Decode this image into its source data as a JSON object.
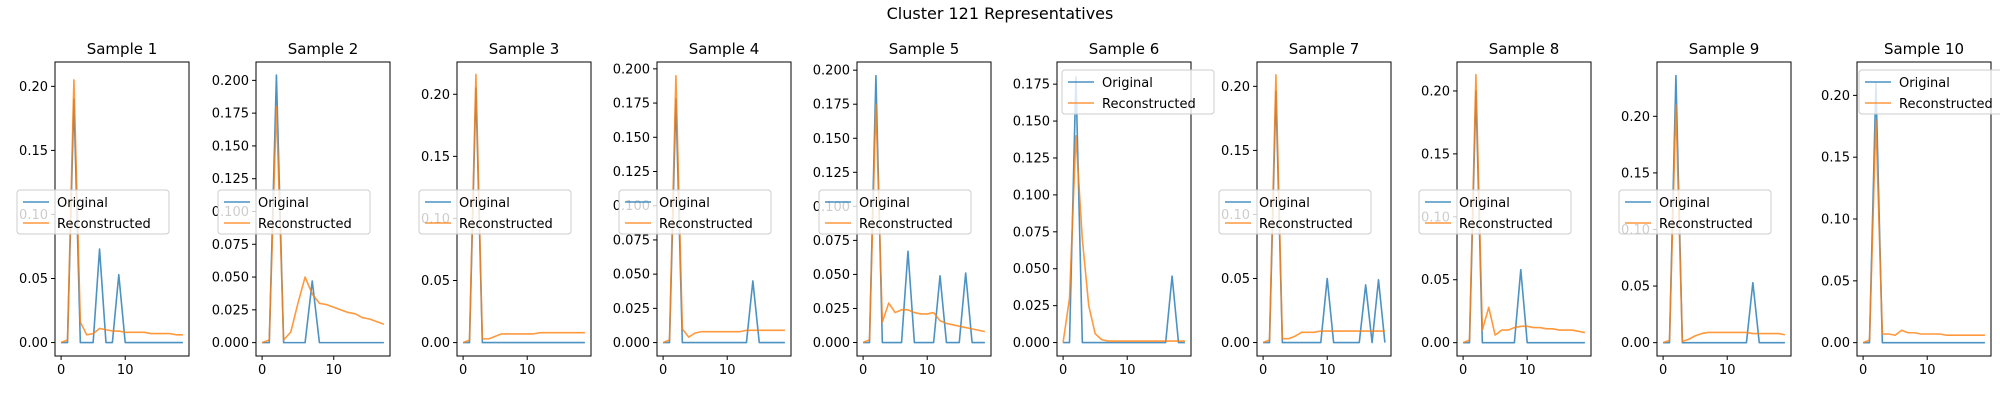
{
  "figure": {
    "title": "Cluster 121 Representatives"
  },
  "colors": {
    "original": "#1f77b4",
    "reconstructed": "#ff7f0e",
    "axes": "#000000"
  },
  "chart_data": [
    {
      "type": "line",
      "title": "Sample 1",
      "legend_position": "center-left",
      "x": [
        0,
        1,
        2,
        3,
        4,
        5,
        6,
        7,
        8,
        9,
        10,
        11,
        12,
        13,
        14,
        15,
        16,
        17,
        18,
        19
      ],
      "xticks": [
        0,
        10
      ],
      "ylim": [
        -0.0105,
        0.219
      ],
      "yticks": [
        0.0,
        0.05,
        0.1,
        0.15,
        0.2
      ],
      "ytick_labels": [
        "0.00",
        "0.05",
        "0.10",
        "0.15",
        "0.20"
      ],
      "series": [
        {
          "name": "Original",
          "values": [
            0,
            0,
            0.19,
            0,
            0,
            0,
            0.073,
            0,
            0,
            0.053,
            0,
            0,
            0,
            0,
            0,
            0,
            0,
            0,
            0,
            0
          ]
        },
        {
          "name": "Reconstructed",
          "values": [
            0,
            0.002,
            0.205,
            0.016,
            0.006,
            0.007,
            0.011,
            0.01,
            0.009,
            0.009,
            0.008,
            0.008,
            0.008,
            0.008,
            0.007,
            0.007,
            0.007,
            0.007,
            0.006,
            0.006
          ]
        }
      ]
    },
    {
      "type": "line",
      "title": "Sample 2",
      "legend_position": "center-left",
      "x": [
        0,
        1,
        2,
        3,
        4,
        5,
        6,
        7,
        8,
        9,
        10,
        11,
        12,
        13,
        14,
        15,
        16,
        17
      ],
      "xticks": [
        0,
        10
      ],
      "ylim": [
        -0.0102,
        0.214
      ],
      "yticks": [
        0.0,
        0.025,
        0.05,
        0.075,
        0.1,
        0.125,
        0.15,
        0.175,
        0.2
      ],
      "ytick_labels": [
        "0.000",
        "0.025",
        "0.050",
        "0.075",
        "0.100",
        "0.125",
        "0.150",
        "0.175",
        "0.200"
      ],
      "series": [
        {
          "name": "Original",
          "values": [
            0,
            0,
            0.204,
            0,
            0,
            0,
            0,
            0.047,
            0,
            0,
            0,
            0,
            0,
            0,
            0,
            0,
            0,
            0
          ]
        },
        {
          "name": "Reconstructed",
          "values": [
            0,
            0.002,
            0.18,
            0.002,
            0.008,
            0.03,
            0.05,
            0.037,
            0.03,
            0.029,
            0.027,
            0.025,
            0.023,
            0.022,
            0.019,
            0.018,
            0.016,
            0.014
          ]
        }
      ]
    },
    {
      "type": "line",
      "title": "Sample 3",
      "legend_position": "center-left",
      "x": [
        0,
        1,
        2,
        3,
        4,
        5,
        6,
        7,
        8,
        9,
        10,
        11,
        12,
        13,
        14,
        15,
        16,
        17,
        18,
        19
      ],
      "xticks": [
        0,
        10
      ],
      "ylim": [
        -0.0108,
        0.226
      ],
      "yticks": [
        0.0,
        0.05,
        0.1,
        0.15,
        0.2
      ],
      "ytick_labels": [
        "0.00",
        "0.05",
        "0.10",
        "0.15",
        "0.20"
      ],
      "series": [
        {
          "name": "Original",
          "values": [
            0,
            0,
            0.205,
            0,
            0,
            0,
            0,
            0,
            0,
            0,
            0,
            0,
            0,
            0,
            0,
            0,
            0,
            0,
            0,
            0
          ]
        },
        {
          "name": "Reconstructed",
          "values": [
            0,
            0.002,
            0.216,
            0.003,
            0.003,
            0.005,
            0.007,
            0.007,
            0.007,
            0.007,
            0.007,
            0.007,
            0.008,
            0.008,
            0.008,
            0.008,
            0.008,
            0.008,
            0.008,
            0.008
          ]
        }
      ]
    },
    {
      "type": "line",
      "title": "Sample 4",
      "legend_position": "center-left",
      "x": [
        0,
        1,
        2,
        3,
        4,
        5,
        6,
        7,
        8,
        9,
        10,
        11,
        12,
        13,
        14,
        15,
        16,
        17,
        18,
        19
      ],
      "xticks": [
        0,
        10
      ],
      "ylim": [
        -0.0098,
        0.205
      ],
      "yticks": [
        0.0,
        0.025,
        0.05,
        0.075,
        0.1,
        0.125,
        0.15,
        0.175,
        0.2
      ],
      "ytick_labels": [
        "0.000",
        "0.025",
        "0.050",
        "0.075",
        "0.100",
        "0.125",
        "0.150",
        "0.175",
        "0.200"
      ],
      "series": [
        {
          "name": "Original",
          "values": [
            0,
            0,
            0.178,
            0,
            0,
            0,
            0,
            0,
            0,
            0,
            0,
            0,
            0,
            0,
            0.045,
            0,
            0,
            0,
            0,
            0
          ]
        },
        {
          "name": "Reconstructed",
          "values": [
            0,
            0.002,
            0.195,
            0.01,
            0.004,
            0.007,
            0.008,
            0.008,
            0.008,
            0.008,
            0.008,
            0.008,
            0.008,
            0.009,
            0.009,
            0.009,
            0.009,
            0.009,
            0.009,
            0.009
          ]
        }
      ]
    },
    {
      "type": "line",
      "title": "Sample 5",
      "legend_position": "center-left",
      "x": [
        0,
        1,
        2,
        3,
        4,
        5,
        6,
        7,
        8,
        9,
        10,
        11,
        12,
        13,
        14,
        15,
        16,
        17,
        18,
        19
      ],
      "xticks": [
        0,
        10
      ],
      "ylim": [
        -0.0099,
        0.206
      ],
      "yticks": [
        0.0,
        0.025,
        0.05,
        0.075,
        0.1,
        0.125,
        0.15,
        0.175,
        0.2
      ],
      "ytick_labels": [
        "0.000",
        "0.025",
        "0.050",
        "0.075",
        "0.100",
        "0.125",
        "0.150",
        "0.175",
        "0.200"
      ],
      "series": [
        {
          "name": "Original",
          "values": [
            0,
            0,
            0.196,
            0,
            0,
            0,
            0,
            0.067,
            0,
            0,
            0,
            0,
            0.049,
            0,
            0,
            0,
            0.051,
            0,
            0,
            0
          ]
        },
        {
          "name": "Reconstructed",
          "values": [
            0,
            0.002,
            0.175,
            0.015,
            0.029,
            0.022,
            0.024,
            0.024,
            0.022,
            0.021,
            0.021,
            0.022,
            0.016,
            0.014,
            0.013,
            0.012,
            0.011,
            0.01,
            0.009,
            0.008
          ]
        }
      ]
    },
    {
      "type": "line",
      "title": "Sample 6",
      "legend_position": "upper-center",
      "x": [
        0,
        1,
        2,
        3,
        4,
        5,
        6,
        7,
        8,
        9,
        10,
        11,
        12,
        13,
        14,
        15,
        16,
        17,
        18,
        19
      ],
      "xticks": [
        0,
        10
      ],
      "ylim": [
        -0.0091,
        0.19
      ],
      "yticks": [
        0.0,
        0.025,
        0.05,
        0.075,
        0.1,
        0.125,
        0.15,
        0.175
      ],
      "ytick_labels": [
        "0.000",
        "0.025",
        "0.050",
        "0.075",
        "0.100",
        "0.125",
        "0.150",
        "0.175"
      ],
      "series": [
        {
          "name": "Original",
          "values": [
            0,
            0,
            0.18,
            0,
            0,
            0,
            0,
            0,
            0,
            0,
            0,
            0,
            0,
            0,
            0,
            0,
            0,
            0.045,
            0,
            0
          ]
        },
        {
          "name": "Reconstructed",
          "values": [
            0,
            0.03,
            0.14,
            0.07,
            0.025,
            0.006,
            0.002,
            0.001,
            0.001,
            0.001,
            0.001,
            0.001,
            0.001,
            0.001,
            0.001,
            0.001,
            0.001,
            0.001,
            0.001,
            0.001
          ]
        }
      ]
    },
    {
      "type": "line",
      "title": "Sample 7",
      "legend_position": "center-left",
      "x": [
        0,
        1,
        2,
        3,
        4,
        5,
        6,
        7,
        8,
        9,
        10,
        11,
        12,
        13,
        14,
        15,
        16,
        17,
        18,
        19
      ],
      "xticks": [
        0,
        10
      ],
      "ylim": [
        -0.0105,
        0.219
      ],
      "yticks": [
        0.0,
        0.05,
        0.1,
        0.15,
        0.2
      ],
      "ytick_labels": [
        "0.00",
        "0.05",
        "0.10",
        "0.15",
        "0.20"
      ],
      "series": [
        {
          "name": "Original",
          "values": [
            0,
            0,
            0.196,
            0,
            0,
            0,
            0,
            0,
            0,
            0,
            0.05,
            0,
            0,
            0,
            0,
            0,
            0.045,
            0,
            0.049,
            0
          ]
        },
        {
          "name": "Reconstructed",
          "values": [
            0,
            0.002,
            0.209,
            0.003,
            0.003,
            0.005,
            0.008,
            0.008,
            0.008,
            0.009,
            0.009,
            0.009,
            0.009,
            0.009,
            0.009,
            0.009,
            0.009,
            0.009,
            0.009,
            0.009
          ]
        }
      ]
    },
    {
      "type": "line",
      "title": "Sample 8",
      "legend_position": "center-left",
      "x": [
        0,
        1,
        2,
        3,
        4,
        5,
        6,
        7,
        8,
        9,
        10,
        11,
        12,
        13,
        14,
        15,
        16,
        17,
        18,
        19
      ],
      "xticks": [
        0,
        10
      ],
      "ylim": [
        -0.0106,
        0.223
      ],
      "yticks": [
        0.0,
        0.05,
        0.1,
        0.15,
        0.2
      ],
      "ytick_labels": [
        "0.00",
        "0.05",
        "0.10",
        "0.15",
        "0.20"
      ],
      "series": [
        {
          "name": "Original",
          "values": [
            0,
            0,
            0.2,
            0,
            0,
            0,
            0,
            0,
            0,
            0.058,
            0,
            0,
            0,
            0,
            0,
            0,
            0,
            0,
            0,
            0
          ]
        },
        {
          "name": "Reconstructed",
          "values": [
            0,
            0.002,
            0.213,
            0.01,
            0.028,
            0.006,
            0.01,
            0.01,
            0.012,
            0.013,
            0.013,
            0.012,
            0.012,
            0.011,
            0.011,
            0.01,
            0.01,
            0.01,
            0.009,
            0.008
          ]
        }
      ]
    },
    {
      "type": "line",
      "title": "Sample 9",
      "legend_position": "center-left",
      "x": [
        0,
        1,
        2,
        3,
        4,
        5,
        6,
        7,
        8,
        9,
        10,
        11,
        12,
        13,
        14,
        15,
        16,
        17,
        18,
        19
      ],
      "xticks": [
        0,
        10
      ],
      "ylim": [
        -0.0118,
        0.248
      ],
      "yticks": [
        0.0,
        0.05,
        0.1,
        0.15,
        0.2
      ],
      "ytick_labels": [
        "0.00",
        "0.05",
        "0.10",
        "0.15",
        "0.20"
      ],
      "series": [
        {
          "name": "Original",
          "values": [
            0,
            0,
            0.236,
            0,
            0,
            0,
            0,
            0,
            0,
            0,
            0,
            0,
            0,
            0,
            0.053,
            0,
            0,
            0,
            0,
            0
          ]
        },
        {
          "name": "Reconstructed",
          "values": [
            0,
            0.002,
            0.21,
            0.001,
            0.003,
            0.006,
            0.008,
            0.009,
            0.009,
            0.009,
            0.009,
            0.009,
            0.009,
            0.009,
            0.008,
            0.008,
            0.008,
            0.008,
            0.008,
            0.007
          ]
        }
      ]
    },
    {
      "type": "line",
      "title": "Sample 10",
      "legend_position": "upper-left",
      "x": [
        0,
        1,
        2,
        3,
        4,
        5,
        6,
        7,
        8,
        9,
        10,
        11,
        12,
        13,
        14,
        15,
        16,
        17,
        18,
        19
      ],
      "xticks": [
        0,
        10
      ],
      "ylim": [
        -0.0108,
        0.227
      ],
      "yticks": [
        0.0,
        0.05,
        0.1,
        0.15,
        0.2
      ],
      "ytick_labels": [
        "0.00",
        "0.05",
        "0.10",
        "0.15",
        "0.20"
      ],
      "series": [
        {
          "name": "Original",
          "values": [
            0,
            0,
            0.21,
            0,
            0,
            0,
            0,
            0,
            0,
            0,
            0,
            0,
            0,
            0,
            0,
            0,
            0,
            0,
            0,
            0
          ]
        },
        {
          "name": "Reconstructed",
          "values": [
            0,
            0.002,
            0.18,
            0.007,
            0.007,
            0.006,
            0.01,
            0.008,
            0.008,
            0.007,
            0.007,
            0.007,
            0.007,
            0.006,
            0.006,
            0.006,
            0.006,
            0.006,
            0.006,
            0.006
          ]
        }
      ]
    }
  ]
}
